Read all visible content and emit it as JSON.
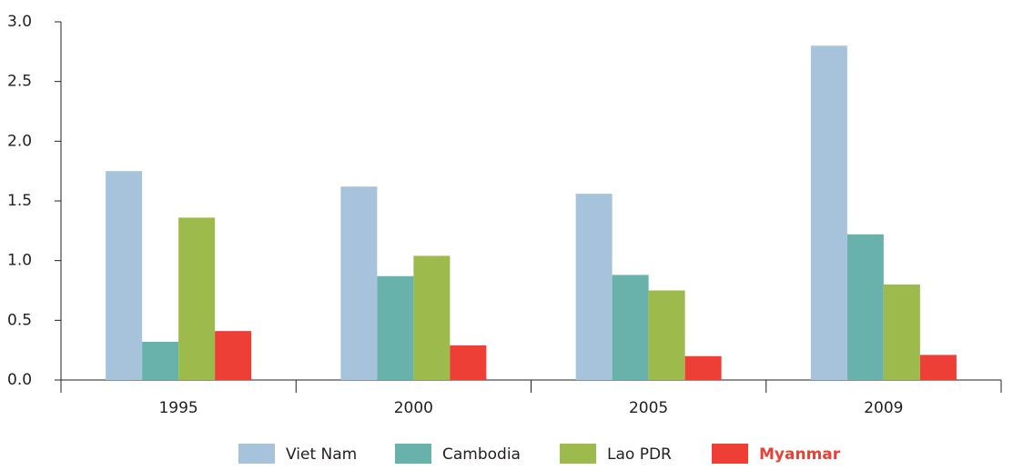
{
  "chart_data": {
    "type": "bar",
    "categories": [
      "1995",
      "2000",
      "2005",
      "2009"
    ],
    "series": [
      {
        "name": "Viet Nam",
        "color": "#a7c3dc",
        "values": [
          1.75,
          1.62,
          1.56,
          2.8
        ]
      },
      {
        "name": "Cambodia",
        "color": "#69b2ac",
        "values": [
          0.32,
          0.87,
          0.88,
          1.22
        ]
      },
      {
        "name": "Lao PDR",
        "color": "#9dbb4d",
        "values": [
          1.36,
          1.04,
          0.75,
          0.8
        ]
      },
      {
        "name": "Myanmar",
        "color": "#ee3f36",
        "values": [
          0.41,
          0.29,
          0.2,
          0.21
        ]
      }
    ],
    "ylim": [
      0,
      3
    ],
    "yticks": [
      {
        "value": 0,
        "label": "0.0"
      },
      0.5,
      {
        "value": 1,
        "label": "1.0"
      },
      1.5,
      {
        "value": 2,
        "label": "2.0"
      },
      2.5,
      {
        "value": 3,
        "label": "3.0"
      }
    ],
    "grid": false
  }
}
